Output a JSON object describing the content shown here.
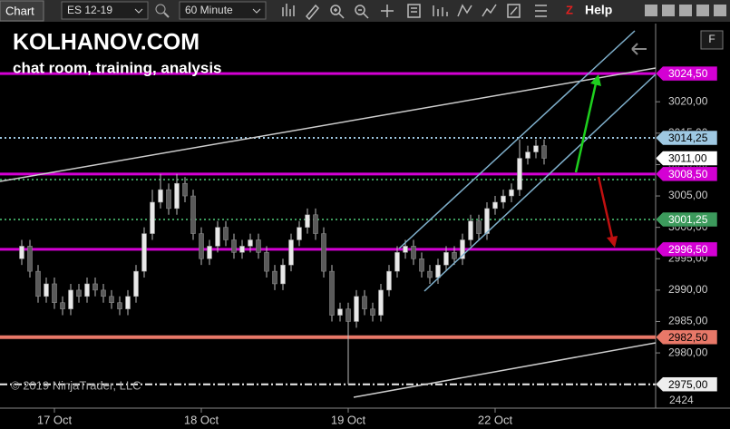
{
  "toolbar": {
    "tab": "Chart",
    "instrument": "ES 12-19",
    "interval": "60 Minute",
    "help": "Help",
    "close_key": "F"
  },
  "watermark": {
    "title": "KOLHANOV.COM",
    "subtitle": "chat room, training, analysis",
    "copyright": "© 2019 NinjaTrader, LLC"
  },
  "chart_data": {
    "type": "candlestick",
    "categories": [
      null,
      null,
      null,
      null,
      "17 Oct",
      null,
      null,
      null,
      null,
      null,
      null,
      null,
      null,
      null,
      null,
      null,
      null,
      null,
      null,
      null,
      null,
      null,
      "18 Oct",
      null,
      null,
      null,
      null,
      null,
      null,
      null,
      null,
      null,
      null,
      null,
      null,
      null,
      null,
      null,
      null,
      null,
      "19 Oct",
      null,
      null,
      null,
      null,
      null,
      null,
      null,
      null,
      null,
      null,
      null,
      null,
      null,
      null,
      null,
      null,
      null,
      "22 Oct",
      null,
      null,
      null,
      null,
      null,
      null
    ],
    "open": [
      2995,
      2997,
      2993,
      2989,
      2991,
      2988,
      2987,
      2990,
      2989,
      2991,
      2990,
      2989,
      2988,
      2987,
      2989,
      2993,
      2999,
      3004,
      3006,
      3003,
      3007,
      3005,
      2999,
      2995,
      2997,
      3000,
      2998,
      2996,
      2997,
      2998,
      2996,
      2993,
      2991,
      2994,
      2998,
      3000,
      3002,
      2999,
      2993,
      2986,
      2987,
      2985,
      2989,
      2987,
      2986,
      2990,
      2993,
      2996,
      2997,
      2995,
      2993,
      2992,
      2994,
      2996,
      2995,
      2998,
      3001,
      2999,
      3003,
      3004,
      3005,
      3006,
      3011,
      3012,
      3013
    ],
    "high": [
      2998,
      2998,
      2994,
      2992,
      2992,
      2989,
      2991,
      2991,
      2992,
      2992,
      2991,
      2990,
      2989,
      2990,
      2994,
      3000,
      3006,
      3008.5,
      3007,
      3008.5,
      3008,
      3006,
      3000,
      2998,
      3001,
      3001,
      2999,
      2998,
      2999,
      2999,
      2997,
      2994,
      2995,
      2999,
      3001,
      3003,
      3003,
      3000,
      2994,
      2988,
      2988,
      2990,
      2990,
      2988,
      2991,
      2994,
      2997,
      2998,
      2998,
      2996,
      2994,
      2995,
      2997,
      2997,
      2999,
      3002,
      3002,
      3004,
      3005,
      3006,
      3007,
      3014,
      3013,
      3014,
      3014
    ],
    "low": [
      2994,
      2992,
      2988,
      2988,
      2987,
      2986,
      2986,
      2988,
      2988,
      2989,
      2988,
      2987,
      2986,
      2986,
      2988,
      2992,
      2998,
      3003,
      3002,
      3002,
      3004,
      2998,
      2994,
      2994,
      2996,
      2997,
      2995,
      2995,
      2996,
      2995,
      2992,
      2990,
      2990,
      2993,
      2997,
      2999,
      2998,
      2992,
      2985,
      2985,
      2975,
      2984,
      2986,
      2985,
      2985,
      2989,
      2992,
      2995,
      2994,
      2992,
      2991,
      2991,
      2993,
      2994,
      2994,
      2997,
      2998,
      2998,
      3002,
      3003,
      3004,
      3005,
      3010,
      3011,
      3010
    ],
    "close": [
      2997,
      2993,
      2989,
      2991,
      2988,
      2987,
      2990,
      2989,
      2991,
      2990,
      2989,
      2988,
      2987,
      2989,
      2993,
      2999,
      3004,
      3006,
      3003,
      3007,
      3005,
      2999,
      2995,
      2997,
      3000,
      2998,
      2996,
      2997,
      2998,
      2996,
      2993,
      2991,
      2994,
      2998,
      3000,
      3002,
      2999,
      2993,
      2986,
      2987,
      2985,
      2989,
      2987,
      2986,
      2990,
      2993,
      2996,
      2997,
      2995,
      2993,
      2992,
      2994,
      2996,
      2995,
      2998,
      3001,
      2999,
      3003,
      3004,
      3005,
      3006,
      3011,
      3012,
      3013,
      3011
    ],
    "up_color": "#e8e8e8",
    "down_color": "#5a5a5a",
    "wick_color": "#bbbbbb",
    "ylim": [
      2971.2,
      3031.3
    ],
    "yticks": [
      {
        "value": 2980,
        "label": "2980,00"
      },
      {
        "value": 2985,
        "label": "2985,00"
      },
      {
        "value": 2990,
        "label": "2990,00"
      },
      {
        "value": 2995,
        "label": "2995,00"
      },
      {
        "value": 3000,
        "label": "3000,00"
      },
      {
        "value": 3005,
        "label": "3005,00"
      },
      {
        "value": 3010,
        "label": "3010,00"
      },
      {
        "value": 3015,
        "label": "3015,00"
      },
      {
        "value": 3020,
        "label": "3020,00"
      }
    ],
    "axis_partial_label": "2424",
    "levels": [
      {
        "value": 3024.5,
        "label": "3024,50",
        "color": "#d400d4",
        "text_color": "#ffffff",
        "style": "solid"
      },
      {
        "value": 3014.25,
        "label": "3014,25",
        "color": "#9ec8e2",
        "text_color": "#000000",
        "style": "dotted"
      },
      {
        "value": 3008.5,
        "label": "3008,50",
        "color": "#d400d4",
        "text_color": "#ffffff",
        "style": "solid"
      },
      {
        "value": 3007.6,
        "color": "#3c9a5c",
        "style": "dotted"
      },
      {
        "value": 3001.25,
        "label": "3001,25",
        "color": "#3c9a5c",
        "text_color": "#ffffff",
        "style": "dotted"
      },
      {
        "value": 2996.5,
        "label": "2996,50",
        "color": "#d400d4",
        "text_color": "#ffffff",
        "style": "solid"
      },
      {
        "value": 2982.5,
        "label": "2982,50",
        "color": "#e87868",
        "text_color": "#000000",
        "style": "solid"
      },
      {
        "value": 2975,
        "label": "2975,00",
        "color": "#eeeeee",
        "text_color": "#000000",
        "style": "dashdot"
      }
    ],
    "last_price": {
      "value": 3011,
      "label": "3011,00"
    }
  }
}
